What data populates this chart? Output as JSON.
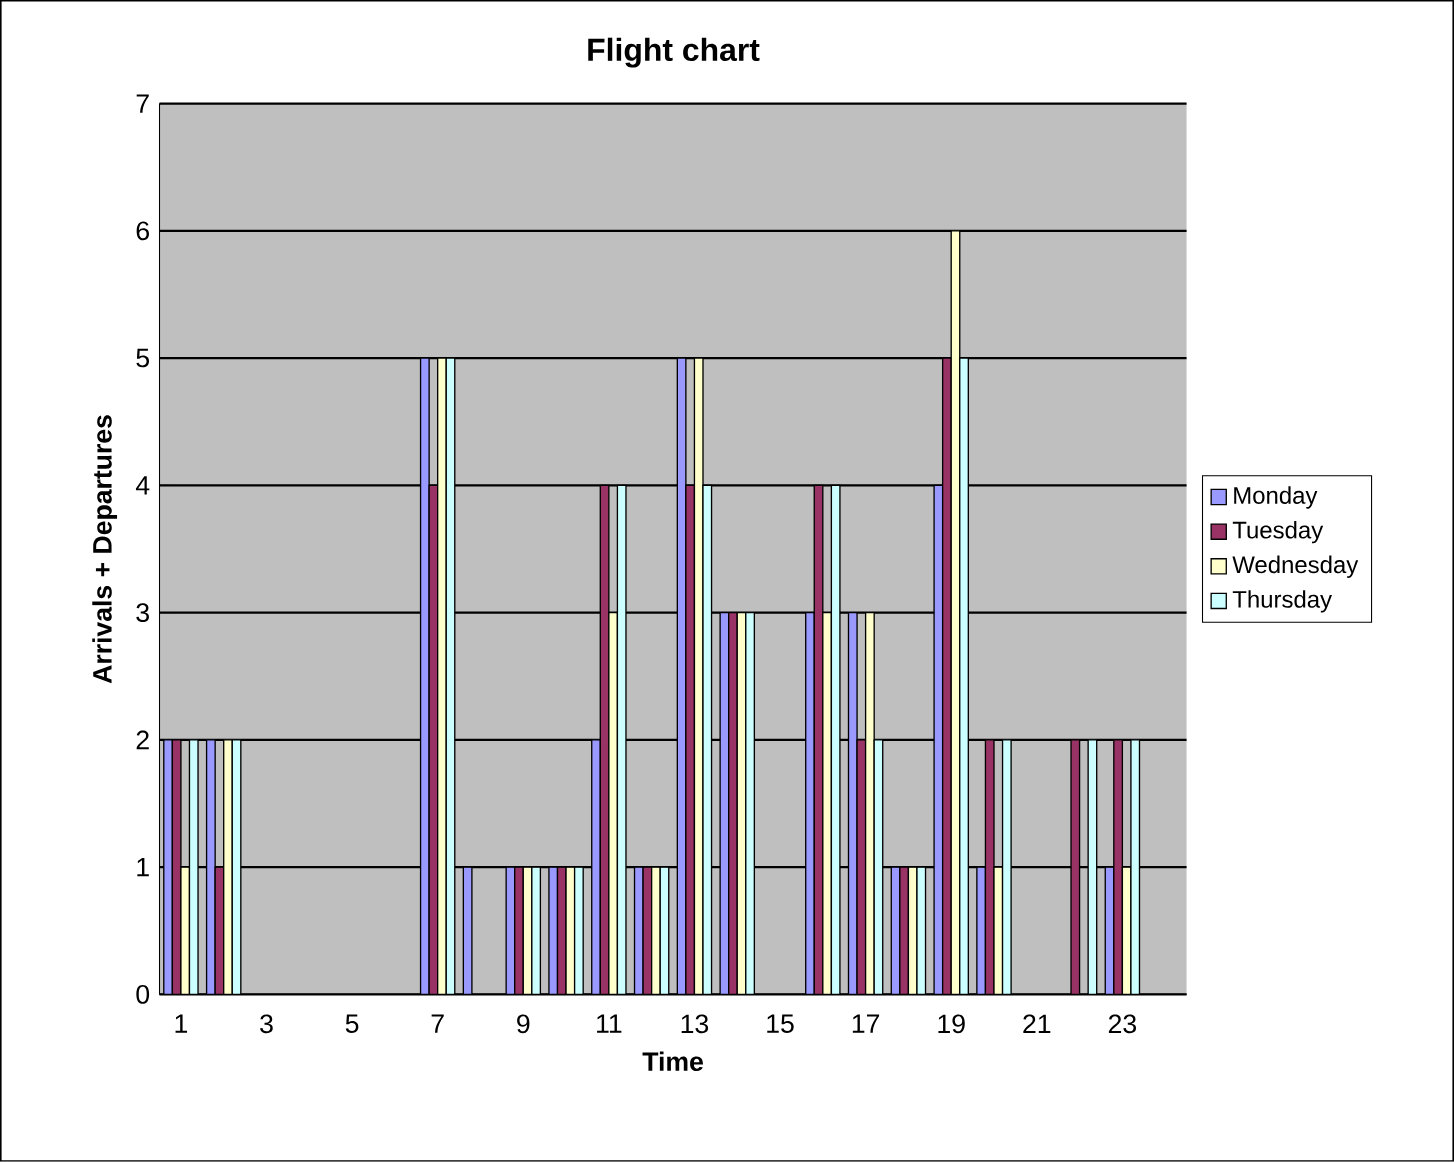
{
  "chart_data": {
    "type": "bar",
    "title": "Flight chart",
    "xlabel": "Time",
    "ylabel": "Arrivals + Departures",
    "categories": [
      "1",
      null,
      "3",
      null,
      "5",
      null,
      "7",
      null,
      "9",
      null,
      "11",
      null,
      "13",
      null,
      "15",
      null,
      "17",
      null,
      "19",
      null,
      "21",
      null,
      "23",
      null
    ],
    "series": [
      {
        "name": "Monday",
        "color": "#9999ff",
        "values": [
          2,
          2,
          0,
          0,
          0,
          0,
          5,
          1,
          1,
          1,
          2,
          1,
          5,
          3,
          0,
          3,
          3,
          1,
          4,
          1,
          0,
          0,
          1,
          0
        ]
      },
      {
        "name": "Tuesday",
        "color": "#993366",
        "values": [
          2,
          1,
          0,
          0,
          0,
          0,
          4,
          0,
          1,
          1,
          4,
          1,
          4,
          3,
          0,
          4,
          2,
          1,
          5,
          2,
          0,
          2,
          2,
          0
        ]
      },
      {
        "name": "Wednesday",
        "color": "#ffffcc",
        "values": [
          1,
          2,
          0,
          0,
          0,
          0,
          5,
          0,
          1,
          1,
          3,
          1,
          5,
          3,
          0,
          3,
          3,
          1,
          6,
          1,
          0,
          0,
          1,
          0
        ]
      },
      {
        "name": "Thursday",
        "color": "#ccffff",
        "values": [
          2,
          2,
          0,
          0,
          0,
          0,
          5,
          0,
          1,
          1,
          4,
          1,
          4,
          3,
          0,
          4,
          2,
          1,
          5,
          2,
          0,
          2,
          2,
          0
        ]
      }
    ],
    "ylim": [
      0,
      7
    ],
    "yticks": [
      0,
      1,
      2,
      3,
      4,
      5,
      6,
      7
    ],
    "grid": "y",
    "legend": "right"
  }
}
